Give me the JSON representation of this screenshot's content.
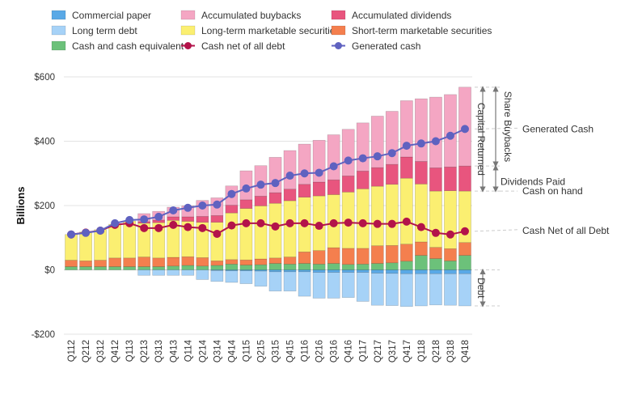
{
  "chart_data": {
    "type": "bar",
    "ylabel": "Billions",
    "ylim": [
      -200,
      600
    ],
    "yticks": [
      -200,
      0,
      200,
      400,
      600
    ],
    "ytick_labels": [
      "-$200",
      "$0",
      "$200",
      "$400",
      "$600"
    ],
    "categories": [
      "Q112",
      "Q212",
      "Q312",
      "Q412",
      "Q113",
      "Q213",
      "Q313",
      "Q413",
      "Q114",
      "Q214",
      "Q314",
      "Q414",
      "Q115",
      "Q215",
      "Q315",
      "Q415",
      "Q116",
      "Q216",
      "Q316",
      "Q416",
      "Q117",
      "Q217",
      "Q317",
      "Q417",
      "Q118",
      "Q218",
      "Q318",
      "Q418"
    ],
    "legend": [
      {
        "key": "commercial_paper",
        "label": "Commercial paper",
        "marker": "box",
        "color": "#5aa9e6"
      },
      {
        "key": "accumulated_buybacks",
        "label": "Accumulated buybacks",
        "marker": "box",
        "color": "#f4a6c3"
      },
      {
        "key": "accumulated_dividends",
        "label": "Accumulated dividends",
        "marker": "box",
        "color": "#e8557e"
      },
      {
        "key": "long_term_debt",
        "label": "Long term debt",
        "marker": "box",
        "color": "#a6d2f7"
      },
      {
        "key": "long_term_marketable_securities",
        "label": "Long-term marketable securities",
        "marker": "box",
        "color": "#fbef71"
      },
      {
        "key": "short_term_marketable_securities",
        "label": "Short-term marketable securities",
        "marker": "box",
        "color": "#f47f4e"
      },
      {
        "key": "cash_and_cash_equivalent",
        "label": "Cash and cash equivalent",
        "marker": "box",
        "color": "#6cc17a"
      },
      {
        "key": "cash_net_of_all_debt",
        "label": "Cash net of all debt",
        "marker": "line",
        "color": "#b3134a"
      },
      {
        "key": "generated_cash",
        "label": "Generated cash",
        "marker": "line",
        "color": "#5f62c0"
      }
    ],
    "positive_stack_order": [
      "cash_and_cash_equivalent",
      "short_term_marketable_securities",
      "long_term_marketable_securities",
      "accumulated_dividends",
      "accumulated_buybacks"
    ],
    "negative_stack_order": [
      "commercial_paper",
      "long_term_debt"
    ],
    "series": {
      "cash_and_cash_equivalent": [
        10,
        10,
        10,
        10,
        10,
        10,
        10,
        12,
        14,
        12,
        14,
        18,
        15,
        16,
        20,
        18,
        20,
        18,
        20,
        17,
        18,
        20,
        22,
        27,
        45,
        35,
        28,
        45
      ],
      "short_term_marketable_securities": [
        20,
        18,
        20,
        27,
        27,
        30,
        27,
        27,
        27,
        26,
        14,
        14,
        16,
        18,
        17,
        22,
        36,
        42,
        49,
        50,
        49,
        55,
        54,
        53,
        42,
        35,
        38,
        40
      ],
      "long_term_marketable_securities": [
        80,
        90,
        95,
        105,
        115,
        105,
        110,
        115,
        110,
        110,
        120,
        145,
        160,
        165,
        170,
        175,
        170,
        170,
        165,
        175,
        185,
        185,
        190,
        205,
        180,
        175,
        180,
        160
      ],
      "accumulated_dividends": [
        0,
        0,
        0,
        0,
        0,
        5,
        8,
        11,
        14,
        18,
        21,
        24,
        27,
        30,
        33,
        36,
        40,
        43,
        46,
        50,
        55,
        58,
        62,
        66,
        70,
        72,
        74,
        78
      ],
      "accumulated_buybacks": [
        0,
        0,
        0,
        0,
        0,
        25,
        27,
        30,
        34,
        50,
        55,
        60,
        90,
        95,
        110,
        120,
        125,
        130,
        140,
        145,
        150,
        160,
        165,
        175,
        195,
        220,
        225,
        245
      ],
      "commercial_paper": [
        0,
        0,
        0,
        0,
        0,
        0,
        0,
        0,
        0,
        0,
        -2,
        -3,
        -3,
        -4,
        -6,
        -6,
        -6,
        -8,
        -8,
        -8,
        -8,
        -10,
        -11,
        -12,
        -12,
        -12,
        -12,
        -12
      ],
      "long_term_debt": [
        0,
        0,
        0,
        0,
        0,
        -17,
        -17,
        -17,
        -17,
        -30,
        -34,
        -36,
        -40,
        -47,
        -60,
        -60,
        -76,
        -80,
        -80,
        -78,
        -90,
        -100,
        -100,
        -102,
        -100,
        -97,
        -98,
        -100
      ],
      "cash_net_of_all_debt": [
        110,
        116,
        122,
        140,
        145,
        130,
        130,
        140,
        133,
        130,
        112,
        138,
        145,
        145,
        135,
        145,
        145,
        137,
        145,
        147,
        145,
        143,
        143,
        150,
        133,
        115,
        110,
        120
      ],
      "generated_cash": [
        110,
        115,
        122,
        145,
        155,
        157,
        165,
        185,
        193,
        200,
        203,
        236,
        253,
        265,
        270,
        293,
        300,
        302,
        322,
        340,
        347,
        353,
        363,
        386,
        393,
        400,
        417,
        438
      ]
    },
    "annotations": [
      {
        "label": "Share Buybacks",
        "orientation": "vertical"
      },
      {
        "label": "Capital Returned",
        "orientation": "vertical"
      },
      {
        "label": "Generated Cash",
        "orientation": "horizontal"
      },
      {
        "label": "Dividends Paid",
        "orientation": "horizontal"
      },
      {
        "label": "Cash on hand",
        "orientation": "horizontal"
      },
      {
        "label": "Cash Net of all Debt",
        "orientation": "horizontal"
      },
      {
        "label": "Debt",
        "orientation": "vertical"
      }
    ]
  }
}
